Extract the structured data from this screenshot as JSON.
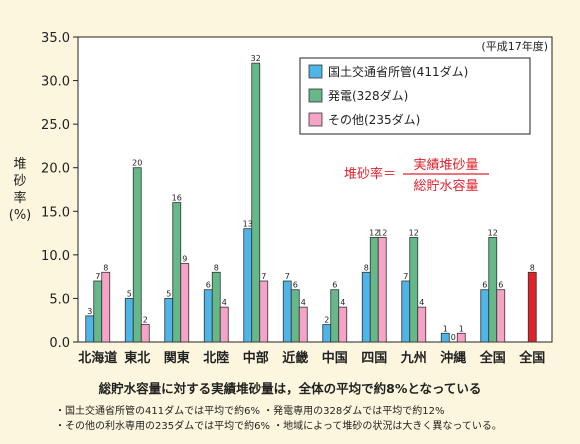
{
  "chart_data": {
    "type": "bar",
    "period": "(平成17年度)",
    "ylabel": [
      "堆",
      "砂",
      "率",
      "(%)"
    ],
    "ylim": [
      0,
      35
    ],
    "yticks": [
      "0.0",
      "5.0",
      "10.0",
      "15.0",
      "20.0",
      "25.0",
      "30.0",
      "35.0"
    ],
    "categories": [
      "北海道",
      "東北",
      "関東",
      "北陸",
      "中部",
      "近畿",
      "中国",
      "四国",
      "九州",
      "沖縄",
      "全国",
      "全国"
    ],
    "series": [
      {
        "name": "国土交通省所管(411ダム)",
        "color": "#4fb4e6",
        "values": [
          3,
          5,
          5,
          6,
          13,
          7,
          2,
          8,
          7,
          1,
          6,
          null
        ]
      },
      {
        "name": "発電(328ダム)",
        "color": "#66b889",
        "values": [
          7,
          20,
          16,
          8,
          32,
          6,
          6,
          12,
          12,
          0,
          12,
          null
        ]
      },
      {
        "name": "その他(235ダム)",
        "color": "#f5a3c7",
        "values": [
          8,
          2,
          9,
          4,
          7,
          4,
          4,
          12,
          4,
          1,
          6,
          null
        ]
      },
      {
        "name": "",
        "color": "#e0202a",
        "values": [
          null,
          null,
          null,
          null,
          null,
          null,
          null,
          null,
          null,
          null,
          null,
          8
        ]
      }
    ],
    "grid": false,
    "legend_position": "top-right",
    "formula": {
      "lhs": "堆砂率＝",
      "numerator": "実績堆砂量",
      "denominator": "総貯水容量",
      "color": "#e0202a"
    }
  },
  "caption": "総貯水容量に対する実績堆砂量は，全体の平均で約8%となっている",
  "notes": [
    "・国土交通省所管の411ダムでは平均で約6%  ・発電専用の328ダムでは平均で約12%",
    "・その他の利水専用の235ダムでは平均で約6%  ・地域によって堆砂の状況は大きく異なっている。"
  ]
}
